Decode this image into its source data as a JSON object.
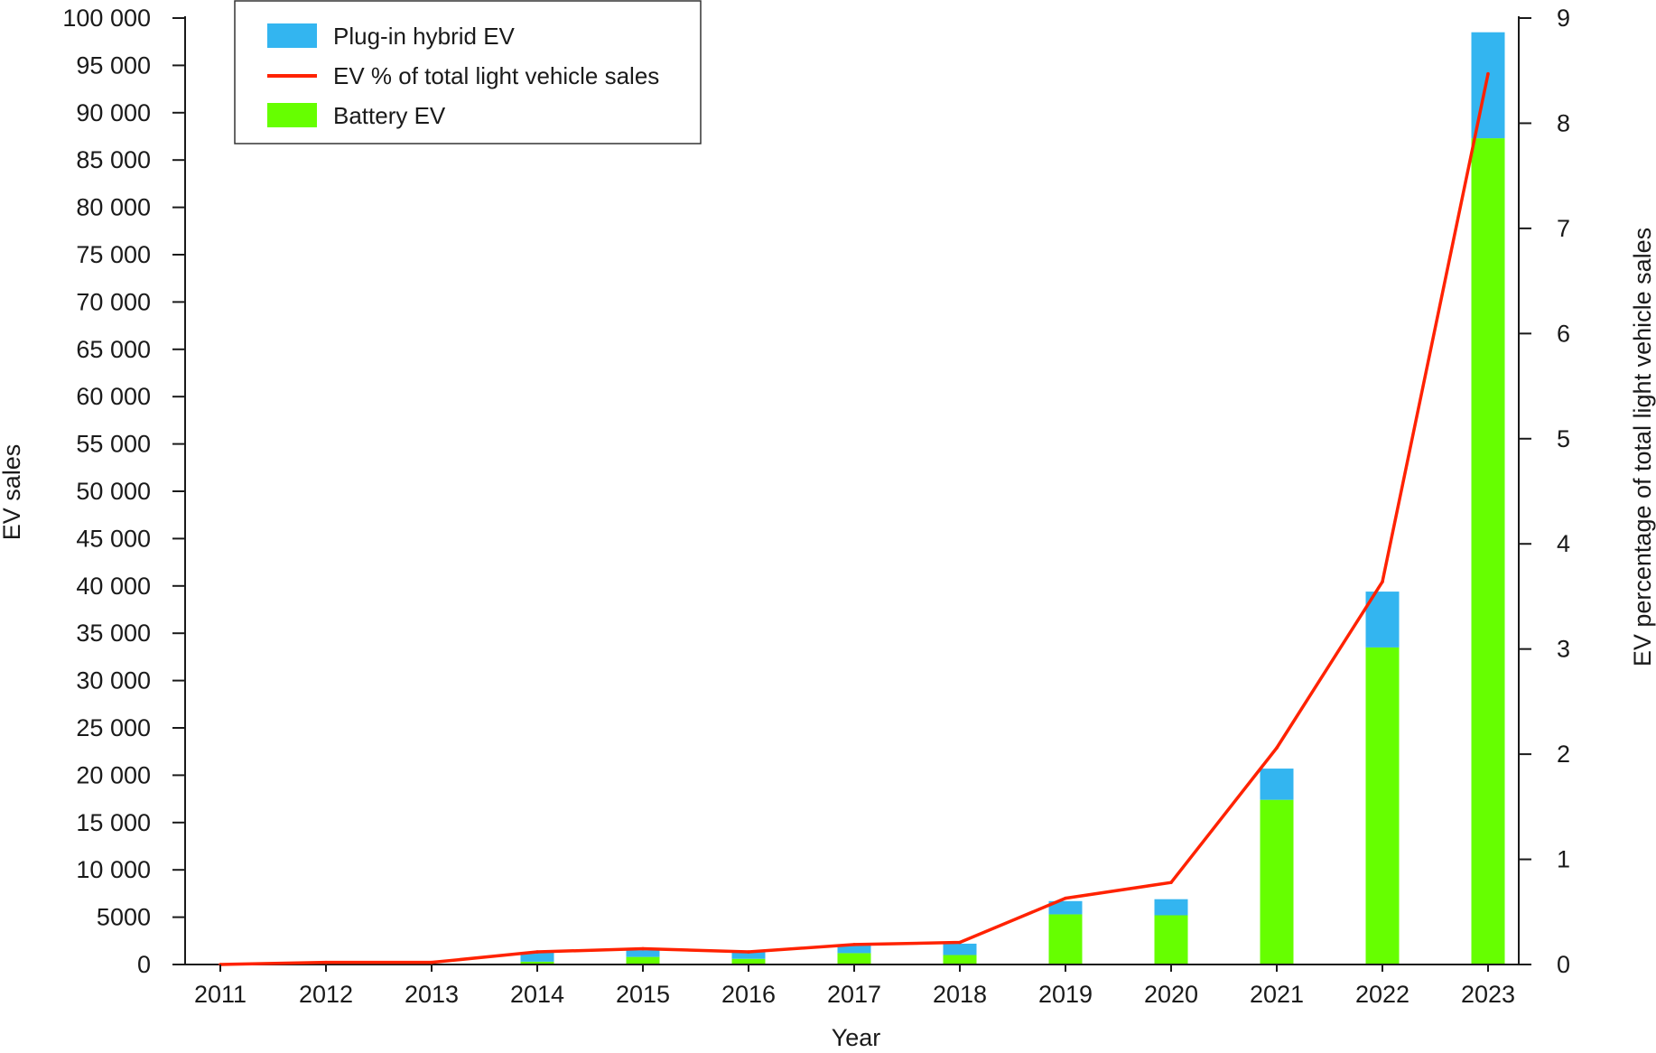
{
  "chart_data": {
    "type": "bar",
    "categories": [
      "2011",
      "2012",
      "2013",
      "2014",
      "2015",
      "2016",
      "2017",
      "2018",
      "2019",
      "2020",
      "2021",
      "2022",
      "2023"
    ],
    "series": [
      {
        "name": "Battery EV",
        "type": "bar",
        "stack": "ev",
        "axis": "left",
        "color": "#66ff00",
        "values": [
          0,
          0,
          0,
          300,
          800,
          600,
          1200,
          1000,
          5300,
          5200,
          17400,
          33500,
          87300
        ]
      },
      {
        "name": "Plug-in hybrid EV",
        "type": "bar",
        "stack": "ev",
        "axis": "left",
        "color": "#33b5f0",
        "values": [
          0,
          0,
          0,
          1000,
          700,
          700,
          900,
          1200,
          1400,
          1700,
          3300,
          5900,
          11200
        ]
      },
      {
        "name": "EV % of total light vehicle sales",
        "type": "line",
        "axis": "right",
        "color": "#ff2200",
        "values": [
          0,
          0.02,
          0.02,
          0.12,
          0.15,
          0.12,
          0.19,
          0.21,
          0.63,
          0.78,
          2.06,
          3.64,
          8.47
        ]
      }
    ],
    "xlabel": "Year",
    "ylabel": "EV sales",
    "y2label": "EV percentage of total light vehicle sales",
    "ylim": [
      0,
      100000
    ],
    "y2lim": [
      0,
      9
    ],
    "yticks": [
      0,
      5000,
      10000,
      15000,
      20000,
      25000,
      30000,
      35000,
      40000,
      45000,
      50000,
      55000,
      60000,
      65000,
      70000,
      75000,
      80000,
      85000,
      90000,
      95000,
      100000
    ],
    "ytick_labels": [
      "0",
      "5000",
      "10 000",
      "15 000",
      "20 000",
      "25 000",
      "30 000",
      "35 000",
      "40 000",
      "45 000",
      "50 000",
      "55 000",
      "60 000",
      "65 000",
      "70 000",
      "75 000",
      "80 000",
      "85 000",
      "90 000",
      "95 000",
      "100 000"
    ],
    "y2ticks": [
      0,
      1,
      2,
      3,
      4,
      5,
      6,
      7,
      8,
      9
    ],
    "y2tick_labels": [
      "0",
      "1",
      "2",
      "3",
      "4",
      "5",
      "6",
      "7",
      "8",
      "9"
    ],
    "grid": false,
    "legend": {
      "position": "top-left",
      "entries": [
        {
          "label": "Plug-in hybrid EV",
          "kind": "box",
          "color": "#33b5f0"
        },
        {
          "label": "EV % of total light vehicle sales",
          "kind": "line",
          "color": "#ff2200"
        },
        {
          "label": "Battery EV",
          "kind": "box",
          "color": "#66ff00"
        }
      ]
    }
  }
}
